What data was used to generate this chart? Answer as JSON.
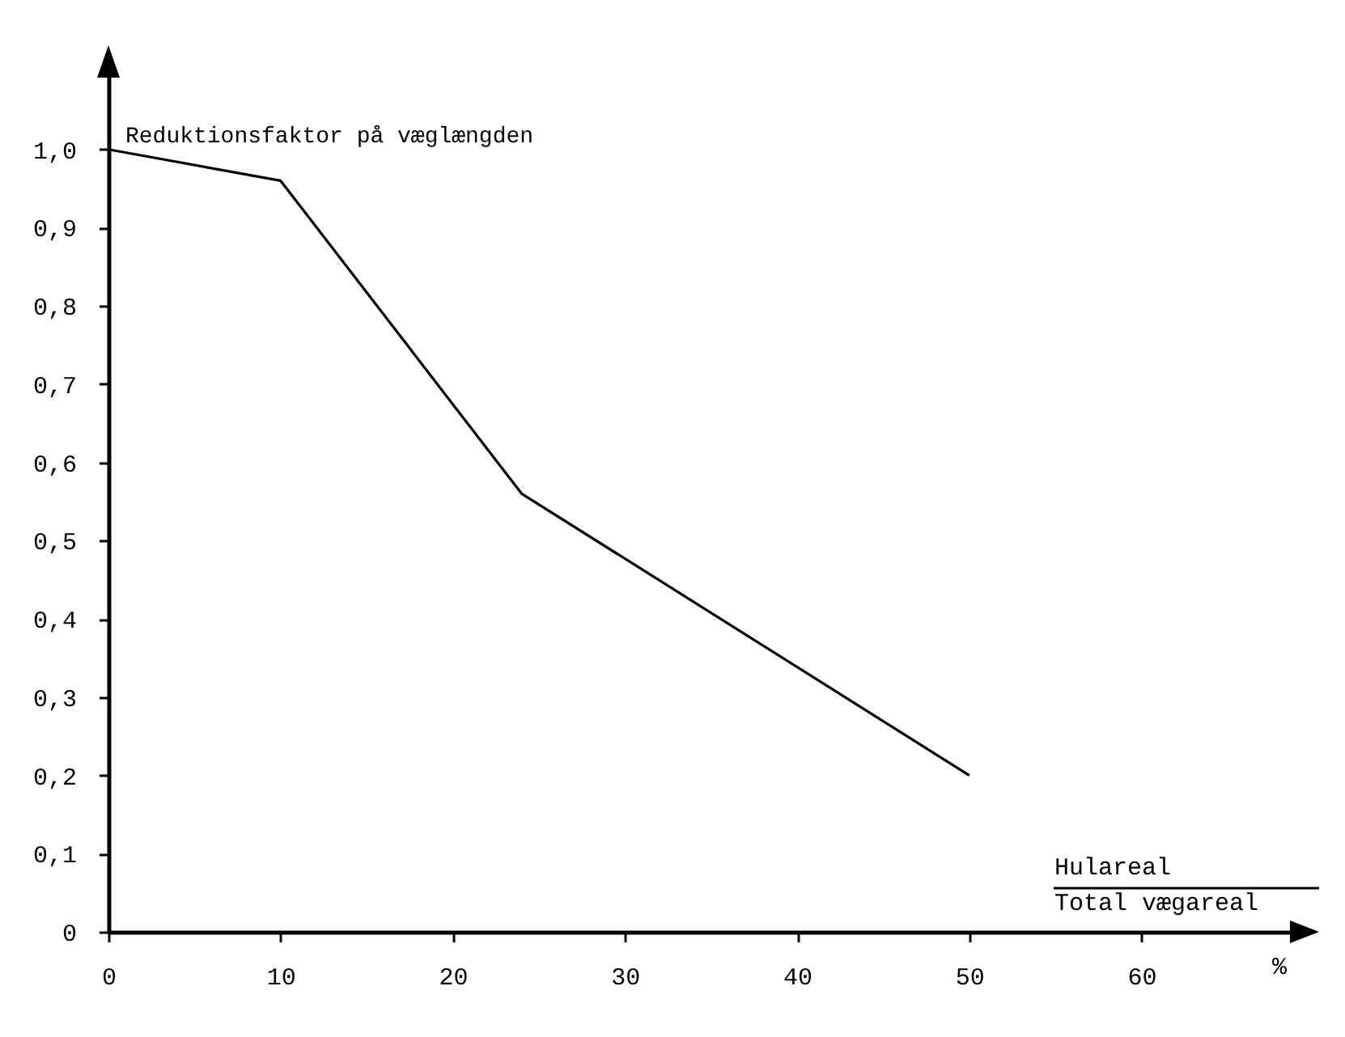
{
  "chart_data": {
    "type": "line",
    "ylabel": "Reduktionsfaktor på væglængden",
    "xlabel": "Hulareal\nTotal vægareal",
    "annotations": [
      "%"
    ],
    "x": [
      0,
      10,
      24,
      50
    ],
    "series": [
      {
        "color": "#000000",
        "values": [
          1.0,
          0.96,
          0.56,
          0.2
        ]
      }
    ],
    "xlim": [
      0,
      69
    ],
    "ylim": [
      0,
      1.1
    ],
    "xticks": [
      0,
      10,
      20,
      30,
      40,
      50,
      60
    ],
    "yticks": [
      0,
      {
        "value": 0.1,
        "label": "0,1"
      },
      {
        "value": 0.2,
        "label": "0,2"
      },
      {
        "value": 0.3,
        "label": "0,3"
      },
      {
        "value": 0.4,
        "label": "0,4"
      },
      {
        "value": 0.5,
        "label": "0,5"
      },
      {
        "value": 0.6,
        "label": "0,6"
      },
      {
        "value": 0.7,
        "label": "0,7"
      },
      {
        "value": 0.8,
        "label": "0,8"
      },
      {
        "value": 0.9,
        "label": "0,9"
      },
      {
        "value": 1.0,
        "label": "1,0"
      }
    ],
    "grid": false,
    "legend": false,
    "marker": "none",
    "line_style": "solid"
  }
}
